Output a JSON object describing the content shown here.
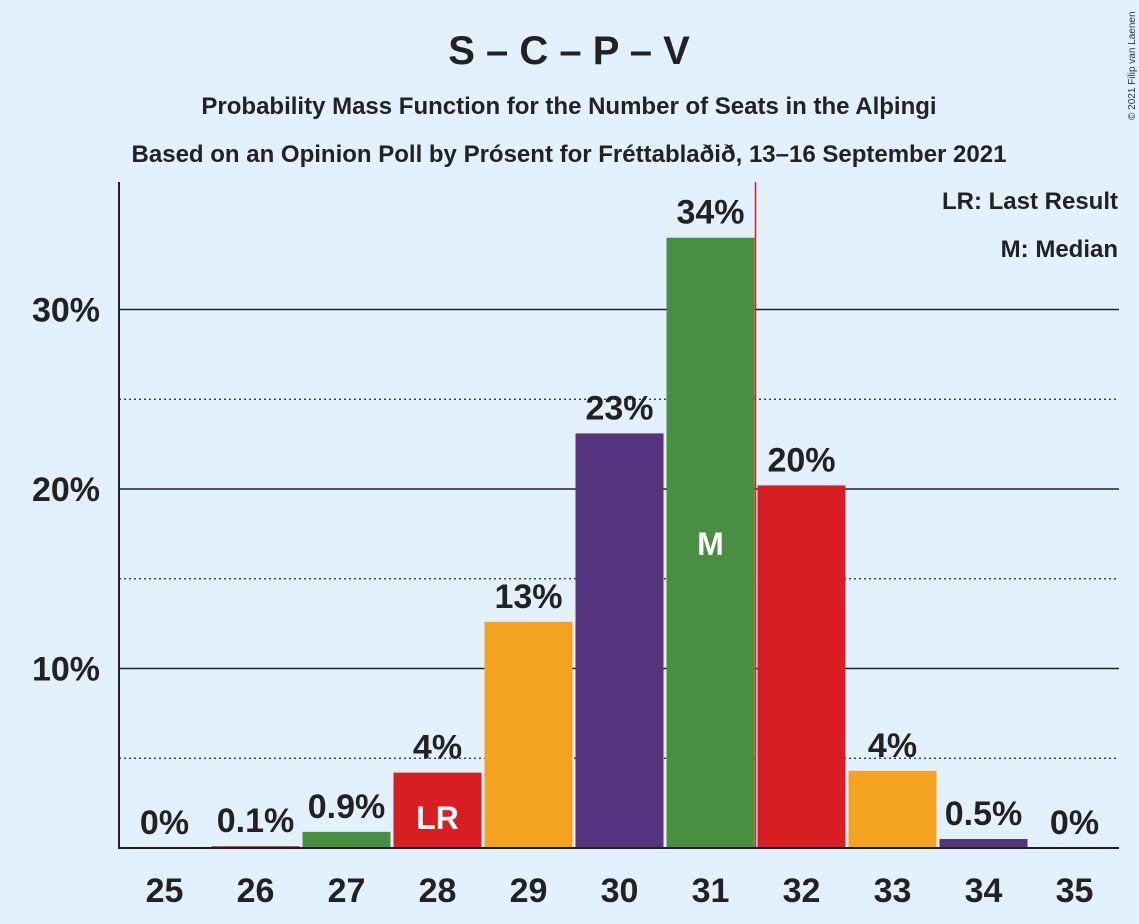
{
  "title": "S – C – P – V",
  "subtitle": "Probability Mass Function for the Number of Seats in the Alþingi",
  "subtitle2": "Based on an Opinion Poll by Prósent for Fréttablaðið, 13–16 September 2021",
  "copyright": "© 2021 Filip van Laenen",
  "legend": {
    "lr": "LR: Last Result",
    "m": "M: Median"
  },
  "colors": {
    "background": "#e3f1ff",
    "green": "#4a8e42",
    "red": "#d81e22",
    "orange": "#f4a320",
    "purple": "#56337f",
    "last_result_line": "#d81e22"
  },
  "chart_data": {
    "type": "bar",
    "categories": [
      "25",
      "26",
      "27",
      "28",
      "29",
      "30",
      "31",
      "32",
      "33",
      "34",
      "35"
    ],
    "values": [
      0,
      0.1,
      0.9,
      4.2,
      12.6,
      23.1,
      34.0,
      20.2,
      4.3,
      0.5,
      0
    ],
    "value_labels": [
      "0%",
      "0.1%",
      "0.9%",
      "4%",
      "13%",
      "23%",
      "34%",
      "20%",
      "4%",
      "0.5%",
      "0%"
    ],
    "bar_colors": [
      "#4a8e42",
      "#d81e22",
      "#4a8e42",
      "#d81e22",
      "#f4a320",
      "#56337f",
      "#4a8e42",
      "#d81e22",
      "#f4a320",
      "#56337f",
      "#4a8e42"
    ],
    "ylim": [
      0,
      37
    ],
    "yticks": [
      10,
      20,
      30
    ],
    "ytick_labels": [
      "10%",
      "20%",
      "30%"
    ],
    "minor_gridlines": [
      5,
      15,
      25
    ],
    "last_result": {
      "seats": "28",
      "marker": "LR"
    },
    "median": {
      "seats": "31",
      "marker": "M"
    },
    "last_result_line_after": "31",
    "legend_placement": "top-right"
  }
}
